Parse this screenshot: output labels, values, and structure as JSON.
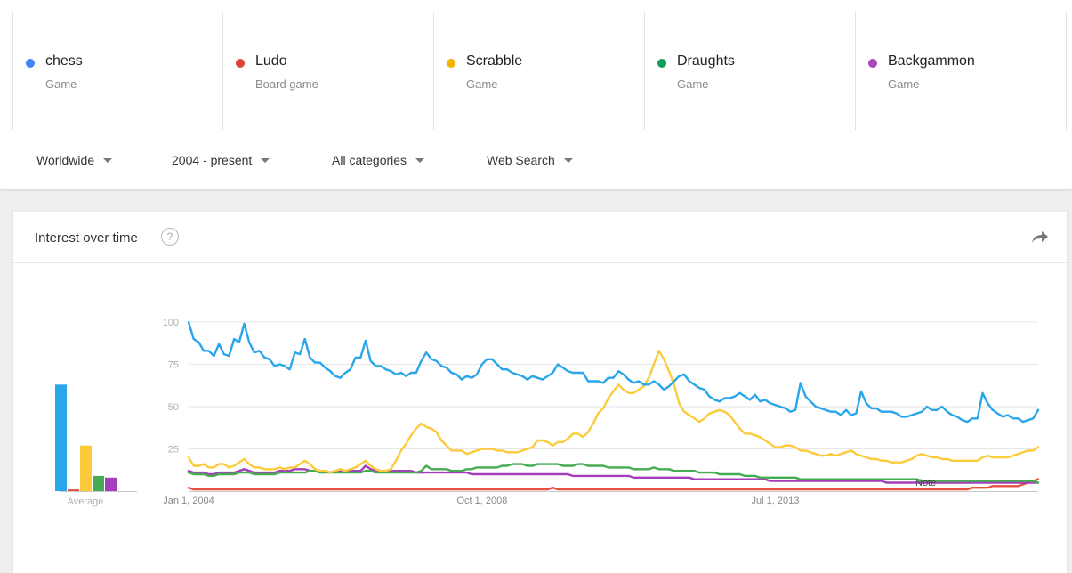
{
  "terms": [
    {
      "name": "chess",
      "type": "Game",
      "color": "#4285f4"
    },
    {
      "name": "Ludo",
      "type": "Board game",
      "color": "#db4437"
    },
    {
      "name": "Scrabble",
      "type": "Game",
      "color": "#f4b400"
    },
    {
      "name": "Draughts",
      "type": "Game",
      "color": "#0f9d58"
    },
    {
      "name": "Backgammon",
      "type": "Game",
      "color": "#ab47bc"
    }
  ],
  "filters": {
    "region": "Worldwide",
    "time": "2004 - present",
    "category": "All categories",
    "search_type": "Web Search"
  },
  "card": {
    "title": "Interest over time",
    "help_icon": "?",
    "share_icon": "share-icon"
  },
  "chart_data": {
    "type": "line",
    "x_ticks": [
      "Jan 1, 2004",
      "Oct 1, 2008",
      "Jul 1, 2013"
    ],
    "y_ticks": [
      100,
      75,
      50,
      25
    ],
    "ylim": [
      0,
      100
    ],
    "annotation": "Note",
    "average_label": "Average",
    "averages": [
      {
        "term": "chess",
        "value": 63,
        "color": "#29a6ea"
      },
      {
        "term": "Ludo",
        "value": 1,
        "color": "#e8503f"
      },
      {
        "term": "Scrabble",
        "value": 27,
        "color": "#fbcb3b"
      },
      {
        "term": "Draughts",
        "value": 9,
        "color": "#47ab54"
      },
      {
        "term": "Backgammon",
        "value": 8,
        "color": "#a33fbb"
      }
    ],
    "series": [
      {
        "term": "chess",
        "color": "#29a6ea",
        "values": [
          100,
          90,
          88,
          83,
          83,
          80,
          87,
          81,
          80,
          90,
          88,
          99,
          88,
          82,
          83,
          79,
          78,
          74,
          75,
          74,
          72,
          82,
          81,
          90,
          79,
          76,
          76,
          73,
          71,
          68,
          67,
          70,
          72,
          79,
          79,
          89,
          77,
          74,
          74,
          72,
          71,
          69,
          70,
          68,
          70,
          70,
          77,
          82,
          78,
          77,
          74,
          73,
          70,
          69,
          66,
          68,
          67,
          69,
          75,
          78,
          78,
          75,
          72,
          72,
          70,
          69,
          68,
          66,
          68,
          67,
          66,
          68,
          70,
          75,
          73,
          71,
          70,
          70,
          70,
          65,
          65,
          65,
          64,
          67,
          67,
          71,
          69,
          66,
          64,
          65,
          63,
          63,
          65,
          63,
          60,
          62,
          65,
          68,
          69,
          65,
          63,
          61,
          60,
          56,
          54,
          53,
          55,
          55,
          56,
          58,
          56,
          54,
          57,
          53,
          54,
          52,
          51,
          50,
          49,
          47,
          48,
          64,
          56,
          53,
          50,
          49,
          48,
          47,
          47,
          45,
          48,
          45,
          46,
          59,
          52,
          49,
          49,
          47,
          47,
          47,
          46,
          44,
          44,
          45,
          46,
          47,
          50,
          48,
          48,
          50,
          47,
          45,
          44,
          42,
          41,
          43,
          43,
          58,
          52,
          48,
          46,
          44,
          45,
          43,
          43,
          41,
          42,
          43,
          48
        ]
      },
      {
        "term": "Ludo",
        "color": "#e8503f",
        "values": [
          2,
          1,
          1,
          1,
          1,
          1,
          1,
          1,
          1,
          1,
          1,
          1,
          1,
          1,
          1,
          1,
          1,
          1,
          1,
          1,
          1,
          1,
          1,
          1,
          1,
          1,
          1,
          1,
          1,
          1,
          1,
          1,
          1,
          1,
          1,
          1,
          1,
          1,
          1,
          1,
          1,
          1,
          1,
          1,
          1,
          1,
          1,
          1,
          1,
          1,
          1,
          1,
          1,
          1,
          1,
          1,
          1,
          1,
          1,
          1,
          1,
          1,
          1,
          1,
          1,
          1,
          1,
          1,
          1,
          1,
          1,
          1,
          2,
          1,
          1,
          1,
          1,
          1,
          1,
          1,
          1,
          1,
          1,
          1,
          1,
          1,
          1,
          1,
          1,
          1,
          1,
          1,
          1,
          1,
          1,
          1,
          1,
          1,
          1,
          1,
          1,
          1,
          1,
          1,
          1,
          1,
          1,
          1,
          1,
          1,
          1,
          1,
          1,
          1,
          1,
          1,
          1,
          1,
          1,
          1,
          1,
          1,
          1,
          1,
          1,
          1,
          1,
          1,
          1,
          1,
          1,
          1,
          1,
          1,
          1,
          1,
          1,
          1,
          1,
          1,
          1,
          1,
          1,
          1,
          1,
          1,
          1,
          1,
          1,
          1,
          1,
          1,
          1,
          1,
          1,
          2,
          2,
          2,
          2,
          3,
          3,
          3,
          3,
          3,
          3,
          4,
          5,
          6,
          7
        ]
      },
      {
        "term": "Scrabble",
        "color": "#fbcb3b",
        "values": [
          20,
          15,
          15,
          16,
          14,
          14,
          16,
          16,
          14,
          15,
          17,
          19,
          16,
          14,
          14,
          13,
          13,
          13,
          14,
          13,
          14,
          14,
          16,
          18,
          16,
          13,
          12,
          12,
          11,
          12,
          13,
          12,
          13,
          14,
          16,
          18,
          15,
          13,
          12,
          12,
          13,
          18,
          24,
          28,
          33,
          37,
          40,
          38,
          37,
          35,
          30,
          27,
          24,
          24,
          24,
          22,
          23,
          24,
          25,
          25,
          25,
          24,
          24,
          23,
          23,
          23,
          24,
          25,
          26,
          30,
          30,
          29,
          27,
          29,
          29,
          31,
          34,
          34,
          32,
          35,
          40,
          46,
          49,
          55,
          59,
          63,
          60,
          58,
          58,
          60,
          62,
          67,
          75,
          83,
          78,
          71,
          63,
          52,
          47,
          45,
          43,
          41,
          43,
          46,
          47,
          48,
          47,
          45,
          41,
          37,
          34,
          34,
          33,
          32,
          30,
          28,
          26,
          26,
          27,
          27,
          26,
          24,
          24,
          23,
          22,
          21,
          21,
          22,
          21,
          22,
          23,
          24,
          22,
          21,
          20,
          19,
          19,
          18,
          18,
          17,
          17,
          17,
          18,
          19,
          21,
          22,
          21,
          20,
          20,
          19,
          19,
          18,
          18,
          18,
          18,
          18,
          18,
          20,
          21,
          20,
          20,
          20,
          20,
          21,
          22,
          23,
          24,
          24,
          26
        ]
      },
      {
        "term": "Draughts",
        "color": "#47ab54",
        "values": [
          11,
          10,
          10,
          10,
          9,
          9,
          10,
          10,
          10,
          10,
          11,
          11,
          11,
          10,
          10,
          10,
          10,
          10,
          11,
          11,
          11,
          11,
          11,
          11,
          12,
          12,
          11,
          11,
          11,
          11,
          11,
          11,
          11,
          11,
          11,
          12,
          12,
          11,
          11,
          11,
          11,
          11,
          11,
          11,
          11,
          11,
          12,
          15,
          13,
          13,
          13,
          13,
          12,
          12,
          12,
          13,
          13,
          14,
          14,
          14,
          14,
          14,
          15,
          15,
          16,
          16,
          16,
          15,
          15,
          16,
          16,
          16,
          16,
          16,
          15,
          15,
          15,
          16,
          16,
          15,
          15,
          15,
          15,
          14,
          14,
          14,
          14,
          14,
          13,
          13,
          13,
          13,
          14,
          13,
          13,
          13,
          12,
          12,
          12,
          12,
          12,
          11,
          11,
          11,
          11,
          10,
          10,
          10,
          10,
          10,
          9,
          9,
          9,
          8,
          8,
          8,
          8,
          8,
          8,
          8,
          8,
          7,
          7,
          7,
          7,
          7,
          7,
          7,
          7,
          7,
          7,
          7,
          7,
          7,
          7,
          7,
          7,
          7,
          7,
          7,
          7,
          7,
          7,
          7,
          7,
          6,
          6,
          6,
          6,
          6,
          6,
          6,
          6,
          6,
          6,
          6,
          6,
          6,
          6,
          6,
          6,
          6,
          6,
          6,
          6,
          6,
          6,
          6,
          5
        ]
      },
      {
        "term": "Backgammon",
        "color": "#a33fbb",
        "values": [
          12,
          11,
          11,
          11,
          10,
          10,
          11,
          11,
          11,
          11,
          12,
          13,
          12,
          11,
          11,
          11,
          11,
          11,
          12,
          12,
          12,
          13,
          13,
          13,
          12,
          12,
          12,
          12,
          11,
          12,
          12,
          12,
          12,
          12,
          12,
          15,
          13,
          12,
          12,
          12,
          12,
          12,
          12,
          12,
          12,
          11,
          11,
          11,
          11,
          11,
          11,
          11,
          11,
          11,
          11,
          11,
          10,
          10,
          10,
          10,
          10,
          10,
          10,
          10,
          10,
          10,
          10,
          10,
          10,
          10,
          10,
          10,
          10,
          10,
          10,
          10,
          9,
          9,
          9,
          9,
          9,
          9,
          9,
          9,
          9,
          9,
          9,
          9,
          8,
          8,
          8,
          8,
          8,
          8,
          8,
          8,
          8,
          8,
          8,
          8,
          7,
          7,
          7,
          7,
          7,
          7,
          7,
          7,
          7,
          7,
          7,
          7,
          7,
          7,
          7,
          6,
          6,
          6,
          6,
          6,
          6,
          6,
          6,
          6,
          6,
          6,
          6,
          6,
          6,
          6,
          6,
          6,
          6,
          6,
          6,
          6,
          6,
          6,
          5,
          5,
          5,
          5,
          5,
          5,
          5,
          5,
          5,
          5,
          5,
          5,
          5,
          5,
          5,
          5,
          5,
          5,
          5,
          5,
          5,
          5,
          5,
          5,
          5,
          5,
          5,
          5,
          5,
          5,
          5
        ]
      }
    ]
  }
}
